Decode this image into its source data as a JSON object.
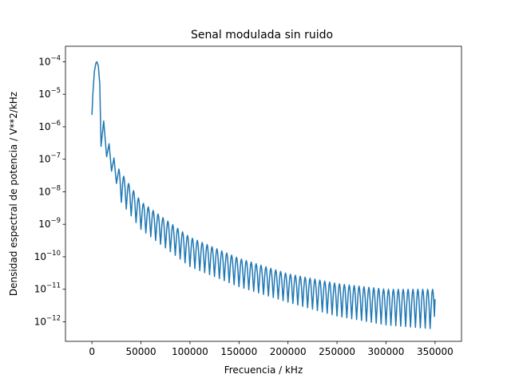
{
  "chart_data": {
    "type": "line",
    "title": "Senal modulada sin ruido",
    "xlabel": "Frecuencia / kHz",
    "ylabel": "Densidad espectral de potencia / V**2/kHz",
    "xlim": [
      -27000,
      377000
    ],
    "ylim": [
      2.5e-13,
      0.0003
    ],
    "yscale": "log",
    "grid": false,
    "legend": "none",
    "line_color": "#1f77b4",
    "xticks": [
      {
        "value": 0,
        "label": "0"
      },
      {
        "value": 50000,
        "label": "50000"
      },
      {
        "value": 100000,
        "label": "100000"
      },
      {
        "value": 150000,
        "label": "150000"
      },
      {
        "value": 200000,
        "label": "200000"
      },
      {
        "value": 250000,
        "label": "250000"
      },
      {
        "value": 300000,
        "label": "300000"
      },
      {
        "value": 350000,
        "label": "350000"
      }
    ],
    "yticks": [
      {
        "value": 1e-12,
        "mantissa": "10",
        "exp": "−12"
      },
      {
        "value": 1e-11,
        "mantissa": "10",
        "exp": "−11"
      },
      {
        "value": 1e-10,
        "mantissa": "10",
        "exp": "−10"
      },
      {
        "value": 1e-09,
        "mantissa": "10",
        "exp": "−9"
      },
      {
        "value": 1e-08,
        "mantissa": "10",
        "exp": "−8"
      },
      {
        "value": 1e-07,
        "mantissa": "10",
        "exp": "−7"
      },
      {
        "value": 1e-06,
        "mantissa": "10",
        "exp": "−6"
      },
      {
        "value": 1e-05,
        "mantissa": "10",
        "exp": "−5"
      },
      {
        "value": 0.0001,
        "mantissa": "10",
        "exp": "−4"
      }
    ],
    "series": [
      {
        "lobe_width": 5000,
        "points": [
          [
            0,
            2.3e-06
          ],
          [
            1000,
            1.1e-05
          ],
          [
            2500,
            5e-05
          ],
          [
            4000,
            9e-05
          ],
          [
            5000,
            0.0001
          ],
          [
            6500,
            7.5e-05
          ],
          [
            8000,
            2e-05
          ],
          [
            9300,
            2.5e-07
          ],
          [
            12000,
            1.5e-06
          ],
          [
            15000,
            1.2e-07
          ],
          [
            17500,
            3e-07
          ],
          [
            20000,
            4.3e-08
          ],
          [
            22500,
            1.1e-07
          ],
          [
            25000,
            1.8e-08
          ],
          [
            27500,
            5e-08
          ]
        ],
        "peak_envelope": [
          [
            27500,
            5e-08
          ],
          [
            50000,
            5e-09
          ],
          [
            100000,
            4e-10
          ],
          [
            150000,
            9e-11
          ],
          [
            200000,
            3e-11
          ],
          [
            250000,
            1.5e-11
          ],
          [
            300000,
            1e-11
          ],
          [
            350000,
            1e-11
          ]
        ],
        "trough_envelope": [
          [
            27500,
            6e-09
          ],
          [
            50000,
            7e-10
          ],
          [
            100000,
            5e-11
          ],
          [
            150000,
            1.2e-11
          ],
          [
            200000,
            4e-12
          ],
          [
            250000,
            1.5e-12
          ],
          [
            300000,
            8e-13
          ],
          [
            350000,
            6e-13
          ]
        ],
        "end_value": [
          350000,
          5e-12
        ]
      }
    ]
  }
}
